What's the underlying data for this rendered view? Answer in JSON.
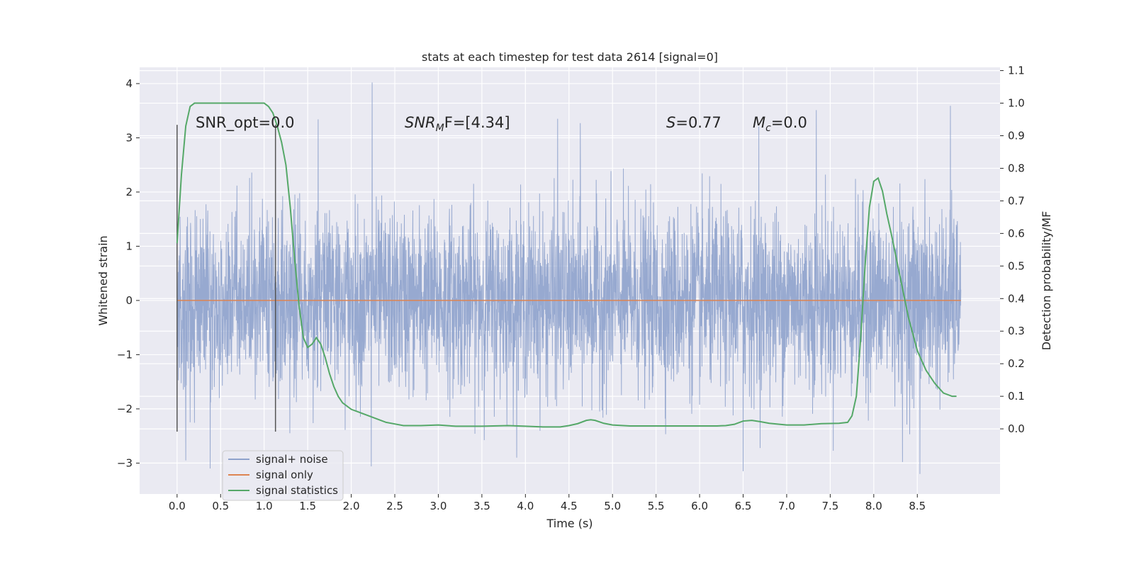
{
  "chart_data": {
    "type": "line",
    "title": "stats at each timestep for test data 2614 [signal=0]",
    "xlabel": "Time (s)",
    "ylabel": "Whitened strain",
    "y2label": "Detection probability/MF",
    "xlim": [
      -0.43,
      9.45
    ],
    "ylim": [
      -3.57,
      4.3
    ],
    "y2lim": [
      -0.2,
      1.11
    ],
    "x_ticks": [
      0.0,
      0.5,
      1.0,
      1.5,
      2.0,
      2.5,
      3.0,
      3.5,
      4.0,
      4.5,
      5.0,
      5.5,
      6.0,
      6.5,
      7.0,
      7.5,
      8.0,
      8.5
    ],
    "x_tick_labels": [
      "0.0",
      "0.5",
      "1.0",
      "1.5",
      "2.0",
      "2.5",
      "3.0",
      "3.5",
      "4.0",
      "4.5",
      "5.0",
      "5.5",
      "6.0",
      "6.5",
      "7.0",
      "7.5",
      "8.0",
      "8.5"
    ],
    "y_ticks": [
      -3,
      -2,
      -1,
      0,
      1,
      2,
      3,
      4
    ],
    "y_tick_labels": [
      "−3",
      "−2",
      "−1",
      "0",
      "1",
      "2",
      "3",
      "4"
    ],
    "y2_ticks": [
      0.0,
      0.1,
      0.2,
      0.3,
      0.4,
      0.5,
      0.6,
      0.7,
      0.8,
      0.9,
      1.0,
      1.1
    ],
    "y2_tick_labels": [
      "0.0",
      "0.1",
      "0.2",
      "0.3",
      "0.4",
      "0.5",
      "0.6",
      "0.7",
      "0.8",
      "0.9",
      "1.0",
      "1.1"
    ],
    "grid": true,
    "legend_position": "lower-left",
    "legend": [
      "signal+ noise",
      "signal only",
      "signal statistics"
    ],
    "annotations": {
      "snr_opt": "SNR_opt=0.0",
      "snr_mf_prefix": "SNR",
      "snr_mf_sub": "M",
      "snr_mf_suffix": "F=[4.34]",
      "s_label": "S",
      "s_value": "=0.77",
      "mc_label": "M",
      "mc_sub": "c",
      "mc_value": "=0.0"
    },
    "vertical_markers": [
      {
        "x": 0.0,
        "y_range": [
          -2.42,
          3.24
        ]
      },
      {
        "x": 1.13,
        "y_range": [
          -2.42,
          3.24
        ]
      }
    ],
    "series": [
      {
        "name": "signal+ noise",
        "color": "#8ea2cc",
        "description": "whitened strain noise, approx range [-3.2, 4.0], time 0.0 to 9.0 s",
        "x_range": [
          0.0,
          9.0
        ],
        "typical_std": 0.82,
        "spikes": [
          {
            "x": 2.24,
            "y": 4.02
          },
          {
            "x": 7.34,
            "y": 3.51
          },
          {
            "x": 8.88,
            "y": 3.59
          },
          {
            "x": 4.37,
            "y": 3.35
          },
          {
            "x": 1.62,
            "y": 3.34
          },
          {
            "x": 4.63,
            "y": 3.27
          },
          {
            "x": 6.68,
            "y": 3.21
          },
          {
            "x": 2.23,
            "y": -3.06
          },
          {
            "x": 6.5,
            "y": -3.15
          },
          {
            "x": 8.53,
            "y": -3.2
          },
          {
            "x": 0.1,
            "y": -2.95
          },
          {
            "x": 0.38,
            "y": -3.1
          },
          {
            "x": 8.33,
            "y": -2.98
          }
        ]
      },
      {
        "name": "signal only",
        "color": "#dd8452",
        "x": [
          0.0,
          9.0
        ],
        "y": [
          0.0,
          0.0
        ]
      },
      {
        "name": "signal statistics",
        "color": "#55a868",
        "axis": "right",
        "x": [
          0.0,
          0.05,
          0.1,
          0.15,
          0.2,
          0.3,
          0.4,
          0.5,
          0.6,
          0.7,
          0.8,
          0.9,
          1.0,
          1.05,
          1.1,
          1.15,
          1.2,
          1.25,
          1.3,
          1.35,
          1.4,
          1.45,
          1.5,
          1.55,
          1.6,
          1.65,
          1.7,
          1.75,
          1.8,
          1.85,
          1.9,
          2.0,
          2.1,
          2.2,
          2.3,
          2.4,
          2.5,
          2.6,
          2.8,
          3.0,
          3.2,
          3.5,
          3.8,
          4.0,
          4.2,
          4.4,
          4.5,
          4.6,
          4.7,
          4.75,
          4.8,
          4.9,
          5.0,
          5.2,
          5.5,
          5.8,
          6.0,
          6.2,
          6.3,
          6.4,
          6.5,
          6.6,
          6.7,
          6.8,
          7.0,
          7.2,
          7.4,
          7.6,
          7.7,
          7.75,
          7.8,
          7.85,
          7.9,
          7.95,
          8.0,
          8.05,
          8.1,
          8.15,
          8.2,
          8.3,
          8.4,
          8.5,
          8.6,
          8.7,
          8.8,
          8.9,
          8.95
        ],
        "y": [
          0.57,
          0.78,
          0.93,
          0.99,
          1.0,
          1.0,
          1.0,
          1.0,
          1.0,
          1.0,
          1.0,
          1.0,
          1.0,
          0.99,
          0.97,
          0.93,
          0.88,
          0.81,
          0.68,
          0.52,
          0.38,
          0.28,
          0.25,
          0.26,
          0.28,
          0.26,
          0.22,
          0.17,
          0.13,
          0.1,
          0.08,
          0.06,
          0.05,
          0.04,
          0.03,
          0.02,
          0.015,
          0.01,
          0.01,
          0.012,
          0.008,
          0.008,
          0.01,
          0.008,
          0.006,
          0.006,
          0.01,
          0.016,
          0.026,
          0.028,
          0.026,
          0.017,
          0.012,
          0.009,
          0.009,
          0.009,
          0.009,
          0.009,
          0.01,
          0.014,
          0.024,
          0.026,
          0.022,
          0.017,
          0.012,
          0.012,
          0.016,
          0.017,
          0.02,
          0.04,
          0.1,
          0.28,
          0.5,
          0.68,
          0.76,
          0.77,
          0.73,
          0.66,
          0.6,
          0.47,
          0.34,
          0.24,
          0.18,
          0.14,
          0.11,
          0.1,
          0.1
        ]
      }
    ]
  }
}
